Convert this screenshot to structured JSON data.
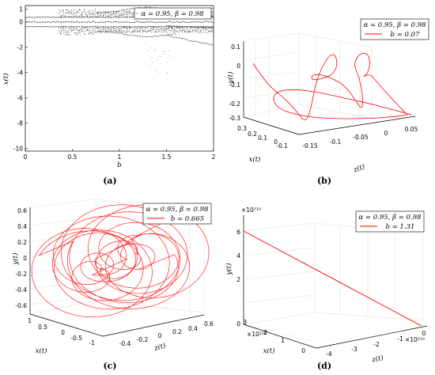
{
  "chart_data": [
    {
      "panel": "a",
      "type": "scatter",
      "caption": "(a)",
      "xlabel": "b",
      "ylabel": "x(t)",
      "xlim": [
        0,
        2
      ],
      "ylim": [
        -10.2,
        1.3
      ],
      "xticks": [
        "0",
        "0.5",
        "1",
        "1.5",
        "2"
      ],
      "yticks": [
        "-10",
        "-8",
        "-6",
        "-4",
        "-2",
        "0",
        "1"
      ],
      "legend": [
        "α = 0.95, β = 0.98"
      ],
      "legend_position": "top-right",
      "grid": false
    },
    {
      "panel": "b",
      "type": "line",
      "caption": "(b)",
      "xlabel": "x(t)",
      "ylabel": "y(t)",
      "zlabel": "z(t)",
      "xticks": [
        "0.3",
        "0.2",
        "0.1",
        "0",
        "-0.1"
      ],
      "yticks": [
        "0.1",
        "0",
        "-0.1",
        "-0.2",
        "-0.3"
      ],
      "zticks": [
        "-0.15",
        "-0.1",
        "-0.05",
        "0",
        "0.05"
      ],
      "legend": [
        "α = 0.95, β = 0.98",
        "b = 0.07"
      ],
      "series_color": "#ff0000",
      "legend_position": "top-right",
      "grid": true
    },
    {
      "panel": "c",
      "type": "line",
      "caption": "(c)",
      "xlabel": "x(t)",
      "ylabel": "y(t)",
      "zlabel": "z(t)",
      "xticks": [
        "1",
        "0.5",
        "0",
        "-0.5",
        "-1"
      ],
      "yticks": [
        "0.6",
        "0.4",
        "0.2",
        "0",
        "-0.2",
        "-0.4",
        "-0.6"
      ],
      "zticks": [
        "-0.4",
        "-0.2",
        "0",
        "0.2",
        "0.4",
        "0.6"
      ],
      "legend": [
        "α = 0.95, β = 0.98",
        "b = 0.665"
      ],
      "series_color": "#ff0000",
      "legend_position": "top-right",
      "grid": true
    },
    {
      "panel": "d",
      "type": "line",
      "caption": "(d)",
      "xlabel": "x(t)",
      "ylabel": "y(t)",
      "zlabel": "z(t)",
      "x_multiplier": "×10²¹⁰",
      "y_multiplier": "×10²¹⁰",
      "z_multiplier": "×10²¹⁰",
      "xticks": [
        "3",
        "2",
        "1",
        "0"
      ],
      "yticks": [
        "6",
        "4",
        "2",
        "0"
      ],
      "zticks": [
        "-4",
        "-3",
        "-2",
        "-1",
        "0"
      ],
      "legend": [
        "α = 0.95, β = 0.98",
        "b = 1.31"
      ],
      "series_color": "#ff0000",
      "legend_position": "top-right",
      "grid": true
    }
  ]
}
